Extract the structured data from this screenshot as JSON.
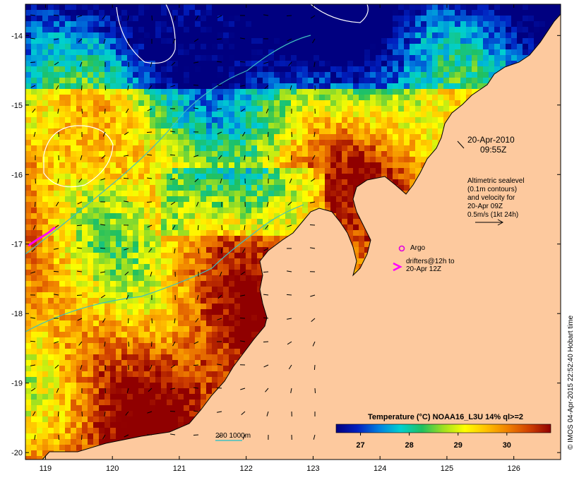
{
  "map": {
    "date_label": "20-Apr-2010",
    "time_label": "09:55Z",
    "altimetry_legend": {
      "lines": [
        "Altimetric sealevel",
        "(0.1m contours)",
        "and velocity for",
        "20-Apr 09Z",
        "0.5m/s (1kt 24h)"
      ]
    },
    "argo_label": "Argo",
    "drifters_label": [
      "drifters@12h to",
      "20-Apr 12Z"
    ],
    "isobath_label": "200  1000m",
    "credit": "© IMOS 04-Apr-2015 22:52:40 Hobart time",
    "colors": {
      "land": "#fdc99e",
      "argo": "#e000e0",
      "drifter": "#ff00ff",
      "isobath": "#40c0c0",
      "contour": "#ffffff"
    },
    "x_axis": {
      "ticks": [
        "119",
        "120",
        "121",
        "122",
        "123",
        "124",
        "125",
        "126"
      ],
      "range": [
        118.7,
        126.7
      ]
    },
    "y_axis": {
      "ticks": [
        "-14",
        "-15",
        "-16",
        "-17",
        "-18",
        "-19",
        "-20"
      ],
      "range": [
        -20.1,
        -13.55
      ]
    }
  },
  "colorbar": {
    "title": "Temperature (°C) NOAA16_L3U 14% ql>=2",
    "ticks": [
      "27",
      "28",
      "29",
      "30"
    ],
    "range": [
      26.5,
      30.9
    ],
    "stops": [
      "#000080",
      "#0020c0",
      "#0080e0",
      "#00d0d0",
      "#20c060",
      "#a0e020",
      "#ffff00",
      "#ffc000",
      "#f08000",
      "#d04000",
      "#900000"
    ]
  }
}
